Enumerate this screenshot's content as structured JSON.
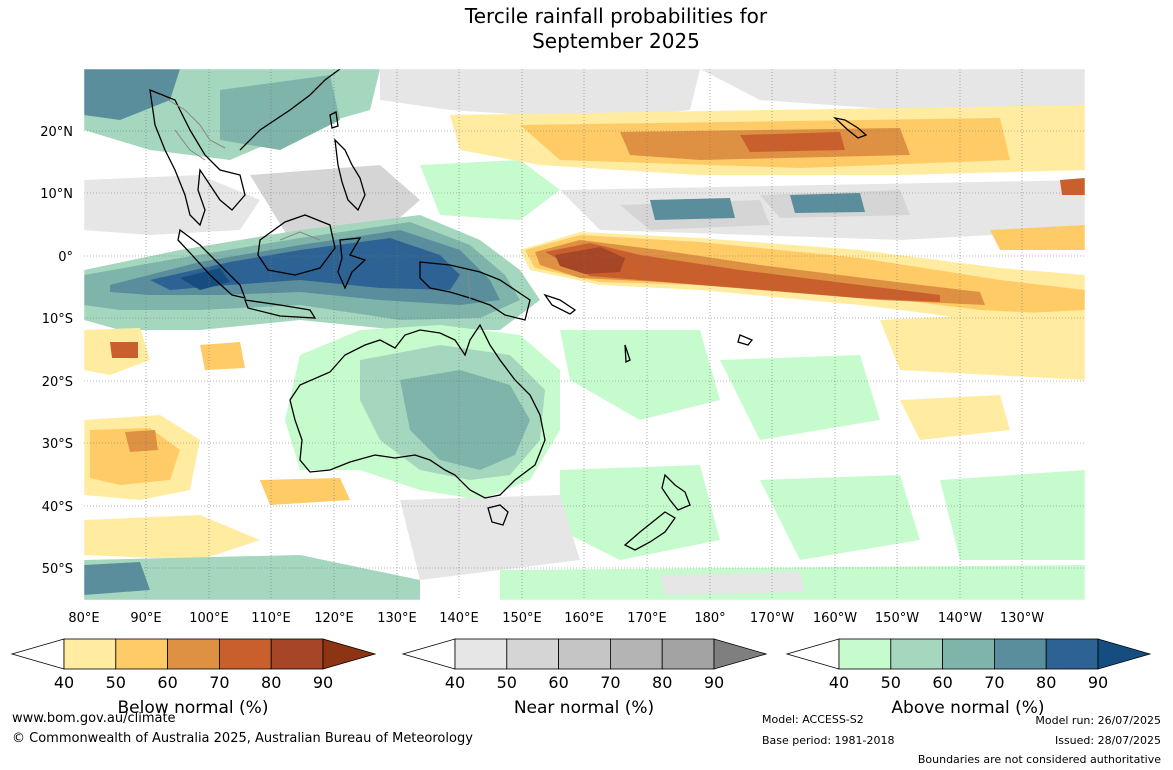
{
  "title": {
    "line1": "Tercile rainfall probabilities for",
    "line2": "September 2025"
  },
  "map": {
    "latitude_labels": [
      "20°N",
      "10°N",
      "0°",
      "10°S",
      "20°S",
      "30°S",
      "40°S",
      "50°S"
    ],
    "longitude_labels": [
      "80°E",
      "90°E",
      "100°E",
      "110°E",
      "120°E",
      "130°E",
      "140°E",
      "150°E",
      "160°E",
      "170°E",
      "180°",
      "170°W",
      "160°W",
      "150°W",
      "140°W",
      "130°W"
    ],
    "ocean_color": "#ffffff",
    "coastline_color": "#000000",
    "border_color": "#888888"
  },
  "colorbars": [
    {
      "label": "Below normal (%)",
      "ticks": [
        "40",
        "50",
        "60",
        "70",
        "80",
        "90"
      ],
      "colors": [
        "#ffffff",
        "#ffeca0",
        "#fecb66",
        "#de9143",
        "#c95f2d",
        "#a64626",
        "#8c3413"
      ]
    },
    {
      "label": "Near normal (%)",
      "ticks": [
        "40",
        "50",
        "60",
        "70",
        "80",
        "90"
      ],
      "colors": [
        "#ffffff",
        "#e6e6e6",
        "#d5d5d5",
        "#c5c5c5",
        "#b4b4b4",
        "#a3a3a3",
        "#7f7f7f"
      ]
    },
    {
      "label": "Above normal (%)",
      "ticks": [
        "40",
        "50",
        "60",
        "70",
        "80",
        "90"
      ],
      "colors": [
        "#ffffff",
        "#c6fbcd",
        "#a4d7bd",
        "#7fb4aa",
        "#5a8e9c",
        "#2d6394",
        "#154d80"
      ]
    }
  ],
  "footer": {
    "website": "www.bom.gov.au/climate",
    "copyright": "© Commonwealth of Australia 2025, Australian Bureau of Meteorology",
    "model": "Model: ACCESS-S2",
    "base_period": "Base period: 1981-2018",
    "model_run": "Model run: 26/07/2025",
    "issued": "Issued: 28/07/2025",
    "disclaimer": "Boundaries are not considered authoritative"
  }
}
